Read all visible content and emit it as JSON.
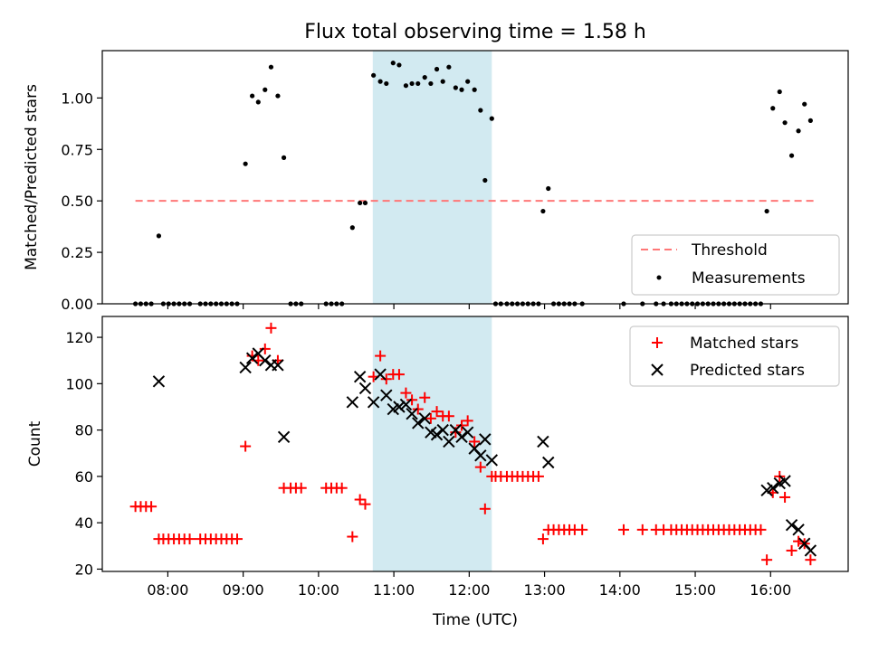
{
  "title": "Flux total observing time = 1.58 h",
  "colors": {
    "threshold": "#ff7777",
    "measurements": "#000000",
    "matched": "#ff0000",
    "predicted": "#000000",
    "shade": "#add8e6"
  },
  "chart_data": [
    {
      "type": "scatter",
      "ylabel": "Matched/Predicted stars",
      "x_unit": "hours UTC",
      "xlim": [
        7.13,
        17.03
      ],
      "ylim": [
        0,
        1.23
      ],
      "yticks": [
        0.0,
        0.25,
        0.5,
        0.75,
        1.0
      ],
      "ytick_labels": [
        "0.00",
        "0.25",
        "0.50",
        "0.75",
        "1.00"
      ],
      "shaded_region": [
        10.72,
        12.3
      ],
      "legend": {
        "placement": "lower right",
        "entries": [
          "Threshold",
          "Measurements"
        ]
      },
      "series": [
        {
          "name": "Threshold",
          "kind": "dashed-line",
          "x": [
            7.57,
            16.57
          ],
          "y": [
            0.5,
            0.5
          ]
        },
        {
          "name": "Measurements",
          "kind": "dots",
          "points": [
            [
              7.57,
              0
            ],
            [
              7.64,
              0
            ],
            [
              7.71,
              0
            ],
            [
              7.78,
              0
            ],
            [
              7.88,
              0.33
            ],
            [
              7.94,
              0
            ],
            [
              8.01,
              0
            ],
            [
              8.08,
              0
            ],
            [
              8.15,
              0
            ],
            [
              8.22,
              0
            ],
            [
              8.29,
              0
            ],
            [
              8.43,
              0
            ],
            [
              8.5,
              0
            ],
            [
              8.57,
              0
            ],
            [
              8.64,
              0
            ],
            [
              8.71,
              0
            ],
            [
              8.78,
              0
            ],
            [
              8.85,
              0
            ],
            [
              8.92,
              0
            ],
            [
              9.03,
              0.68
            ],
            [
              9.12,
              1.01
            ],
            [
              9.2,
              0.98
            ],
            [
              9.29,
              1.04
            ],
            [
              9.37,
              1.15
            ],
            [
              9.46,
              1.01
            ],
            [
              9.54,
              0.71
            ],
            [
              9.63,
              0
            ],
            [
              9.7,
              0
            ],
            [
              9.77,
              0
            ],
            [
              10.1,
              0
            ],
            [
              10.17,
              0
            ],
            [
              10.24,
              0
            ],
            [
              10.31,
              0
            ],
            [
              10.45,
              0.37
            ],
            [
              10.55,
              0.49
            ],
            [
              10.62,
              0.49
            ],
            [
              10.73,
              1.11
            ],
            [
              10.82,
              1.08
            ],
            [
              10.9,
              1.07
            ],
            [
              10.99,
              1.17
            ],
            [
              11.07,
              1.16
            ],
            [
              11.16,
              1.06
            ],
            [
              11.24,
              1.07
            ],
            [
              11.32,
              1.07
            ],
            [
              11.41,
              1.1
            ],
            [
              11.49,
              1.07
            ],
            [
              11.57,
              1.14
            ],
            [
              11.65,
              1.08
            ],
            [
              11.73,
              1.15
            ],
            [
              11.82,
              1.05
            ],
            [
              11.9,
              1.04
            ],
            [
              11.98,
              1.08
            ],
            [
              12.07,
              1.04
            ],
            [
              12.15,
              0.94
            ],
            [
              12.21,
              0.6
            ],
            [
              12.3,
              0.9
            ],
            [
              12.35,
              0
            ],
            [
              12.42,
              0
            ],
            [
              12.5,
              0
            ],
            [
              12.57,
              0
            ],
            [
              12.64,
              0
            ],
            [
              12.71,
              0
            ],
            [
              12.78,
              0
            ],
            [
              12.85,
              0
            ],
            [
              12.92,
              0
            ],
            [
              12.98,
              0.45
            ],
            [
              13.05,
              0.56
            ],
            [
              13.12,
              0
            ],
            [
              13.19,
              0
            ],
            [
              13.26,
              0
            ],
            [
              13.33,
              0
            ],
            [
              13.4,
              0
            ],
            [
              13.5,
              0
            ],
            [
              14.05,
              0
            ],
            [
              14.3,
              0
            ],
            [
              14.48,
              0
            ],
            [
              14.58,
              0
            ],
            [
              14.68,
              0
            ],
            [
              14.75,
              0
            ],
            [
              14.82,
              0
            ],
            [
              14.89,
              0
            ],
            [
              14.96,
              0
            ],
            [
              15.03,
              0
            ],
            [
              15.1,
              0
            ],
            [
              15.17,
              0
            ],
            [
              15.24,
              0
            ],
            [
              15.31,
              0
            ],
            [
              15.38,
              0
            ],
            [
              15.45,
              0
            ],
            [
              15.52,
              0
            ],
            [
              15.59,
              0
            ],
            [
              15.66,
              0
            ],
            [
              15.73,
              0
            ],
            [
              15.8,
              0
            ],
            [
              15.87,
              0
            ],
            [
              15.95,
              0.45
            ],
            [
              16.03,
              0.95
            ],
            [
              16.12,
              1.03
            ],
            [
              16.19,
              0.88
            ],
            [
              16.28,
              0.72
            ],
            [
              16.37,
              0.84
            ],
            [
              16.45,
              0.97
            ],
            [
              16.53,
              0.89
            ]
          ]
        }
      ]
    },
    {
      "type": "scatter",
      "xlabel": "Time (UTC)",
      "ylabel": "Count",
      "x_unit": "hours UTC",
      "xlim": [
        7.13,
        17.03
      ],
      "ylim": [
        19,
        129
      ],
      "yticks": [
        20,
        40,
        60,
        80,
        100,
        120
      ],
      "ytick_labels": [
        "20",
        "40",
        "60",
        "80",
        "100",
        "120"
      ],
      "xticks": [
        8,
        9,
        10,
        11,
        12,
        13,
        14,
        15,
        16
      ],
      "xtick_labels": [
        "08:00",
        "09:00",
        "10:00",
        "11:00",
        "12:00",
        "13:00",
        "14:00",
        "15:00",
        "16:00"
      ],
      "shaded_region": [
        10.72,
        12.3
      ],
      "legend": {
        "placement": "upper right",
        "entries": [
          "Matched stars",
          "Predicted stars"
        ]
      },
      "series": [
        {
          "name": "Matched stars",
          "kind": "plus",
          "points": [
            [
              7.57,
              47
            ],
            [
              7.64,
              47
            ],
            [
              7.71,
              47
            ],
            [
              7.78,
              47
            ],
            [
              7.88,
              33
            ],
            [
              7.94,
              33
            ],
            [
              8.01,
              33
            ],
            [
              8.08,
              33
            ],
            [
              8.15,
              33
            ],
            [
              8.22,
              33
            ],
            [
              8.29,
              33
            ],
            [
              8.43,
              33
            ],
            [
              8.5,
              33
            ],
            [
              8.57,
              33
            ],
            [
              8.64,
              33
            ],
            [
              8.71,
              33
            ],
            [
              8.78,
              33
            ],
            [
              8.85,
              33
            ],
            [
              8.92,
              33
            ],
            [
              9.03,
              73
            ],
            [
              9.12,
              112
            ],
            [
              9.2,
              110
            ],
            [
              9.29,
              115
            ],
            [
              9.37,
              124
            ],
            [
              9.46,
              110
            ],
            [
              9.54,
              55
            ],
            [
              9.63,
              55
            ],
            [
              9.7,
              55
            ],
            [
              9.77,
              55
            ],
            [
              10.1,
              55
            ],
            [
              10.17,
              55
            ],
            [
              10.24,
              55
            ],
            [
              10.31,
              55
            ],
            [
              10.45,
              34
            ],
            [
              10.55,
              50
            ],
            [
              10.62,
              48
            ],
            [
              10.73,
              103
            ],
            [
              10.82,
              112
            ],
            [
              10.9,
              102
            ],
            [
              10.99,
              104
            ],
            [
              11.07,
              104
            ],
            [
              11.16,
              96
            ],
            [
              11.24,
              93
            ],
            [
              11.32,
              89
            ],
            [
              11.41,
              94
            ],
            [
              11.49,
              85
            ],
            [
              11.57,
              88
            ],
            [
              11.65,
              86
            ],
            [
              11.73,
              86
            ],
            [
              11.82,
              79
            ],
            [
              11.9,
              82
            ],
            [
              11.98,
              84
            ],
            [
              12.07,
              75
            ],
            [
              12.15,
              64
            ],
            [
              12.21,
              46
            ],
            [
              12.3,
              60
            ],
            [
              12.35,
              60
            ],
            [
              12.42,
              60
            ],
            [
              12.5,
              60
            ],
            [
              12.57,
              60
            ],
            [
              12.64,
              60
            ],
            [
              12.71,
              60
            ],
            [
              12.78,
              60
            ],
            [
              12.85,
              60
            ],
            [
              12.92,
              60
            ],
            [
              12.98,
              33
            ],
            [
              13.05,
              37
            ],
            [
              13.12,
              37
            ],
            [
              13.19,
              37
            ],
            [
              13.26,
              37
            ],
            [
              13.33,
              37
            ],
            [
              13.4,
              37
            ],
            [
              13.5,
              37
            ],
            [
              14.05,
              37
            ],
            [
              14.3,
              37
            ],
            [
              14.48,
              37
            ],
            [
              14.58,
              37
            ],
            [
              14.68,
              37
            ],
            [
              14.75,
              37
            ],
            [
              14.82,
              37
            ],
            [
              14.89,
              37
            ],
            [
              14.96,
              37
            ],
            [
              15.03,
              37
            ],
            [
              15.1,
              37
            ],
            [
              15.17,
              37
            ],
            [
              15.24,
              37
            ],
            [
              15.31,
              37
            ],
            [
              15.38,
              37
            ],
            [
              15.45,
              37
            ],
            [
              15.52,
              37
            ],
            [
              15.59,
              37
            ],
            [
              15.66,
              37
            ],
            [
              15.73,
              37
            ],
            [
              15.8,
              37
            ],
            [
              15.87,
              37
            ],
            [
              15.95,
              24
            ],
            [
              16.03,
              53
            ],
            [
              16.12,
              60
            ],
            [
              16.19,
              51
            ],
            [
              16.28,
              28
            ],
            [
              16.37,
              32
            ],
            [
              16.45,
              31
            ],
            [
              16.53,
              24
            ]
          ]
        },
        {
          "name": "Predicted stars",
          "kind": "x",
          "points": [
            [
              7.88,
              101
            ],
            [
              9.03,
              107
            ],
            [
              9.12,
              111
            ],
            [
              9.2,
              113
            ],
            [
              9.29,
              110
            ],
            [
              9.37,
              108
            ],
            [
              9.46,
              108
            ],
            [
              9.54,
              77
            ],
            [
              10.45,
              92
            ],
            [
              10.55,
              103
            ],
            [
              10.62,
              98
            ],
            [
              10.73,
              92
            ],
            [
              10.82,
              104
            ],
            [
              10.9,
              95
            ],
            [
              10.99,
              89
            ],
            [
              11.07,
              90
            ],
            [
              11.16,
              91
            ],
            [
              11.24,
              87
            ],
            [
              11.32,
              83
            ],
            [
              11.41,
              85
            ],
            [
              11.49,
              79
            ],
            [
              11.57,
              78
            ],
            [
              11.65,
              80
            ],
            [
              11.73,
              75
            ],
            [
              11.82,
              80
            ],
            [
              11.9,
              77
            ],
            [
              11.98,
              79
            ],
            [
              12.07,
              72
            ],
            [
              12.15,
              69
            ],
            [
              12.21,
              76
            ],
            [
              12.3,
              67
            ],
            [
              12.98,
              75
            ],
            [
              13.05,
              66
            ],
            [
              15.95,
              54
            ],
            [
              16.03,
              55
            ],
            [
              16.12,
              57
            ],
            [
              16.19,
              58
            ],
            [
              16.28,
              39
            ],
            [
              16.37,
              37
            ],
            [
              16.45,
              31
            ],
            [
              16.53,
              28
            ]
          ]
        }
      ]
    }
  ]
}
